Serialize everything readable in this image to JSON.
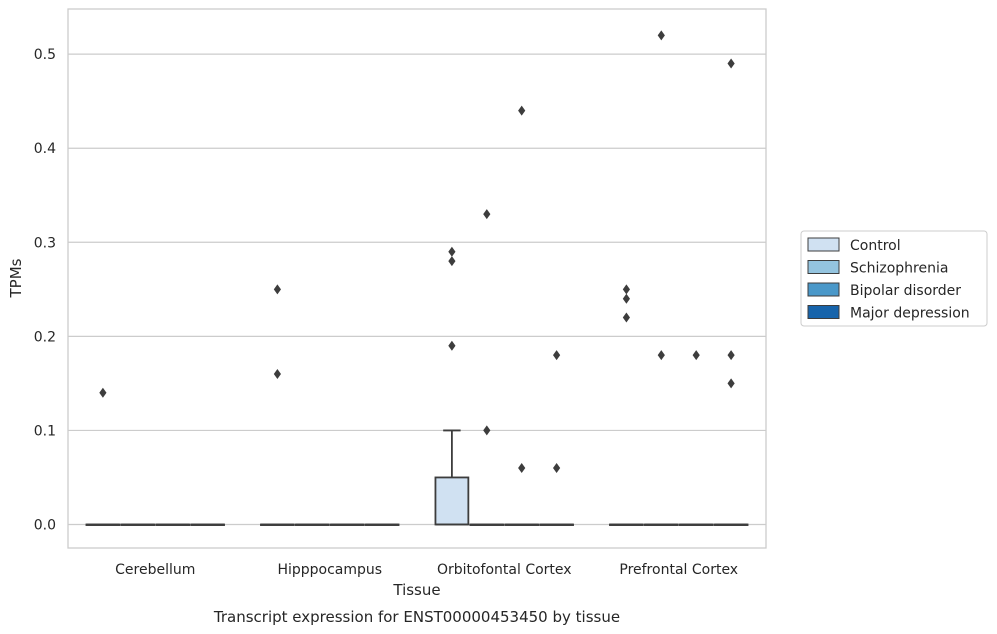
{
  "chart_data": {
    "type": "box",
    "title": "",
    "caption": "Transcript expression for ENST00000453450 by tissue",
    "xlabel": "Tissue",
    "ylabel": "TPMs",
    "ylim": [
      -0.025,
      0.548
    ],
    "yticks": [
      0.0,
      0.1,
      0.2,
      0.3,
      0.4,
      0.5
    ],
    "ytick_labels": [
      "0.0",
      "0.1",
      "0.2",
      "0.3",
      "0.4",
      "0.5"
    ],
    "grid": true,
    "legend_position": "right",
    "categories": [
      "Cerebellum",
      "Hipppocampus",
      "Orbitofontal Cortex",
      "Prefrontal Cortex"
    ],
    "series": [
      {
        "name": "Control",
        "color": "#d0e1f2",
        "boxes": [
          {
            "q1": 0.0,
            "median": 0.0,
            "q3": 0.0,
            "whisker_low": 0.0,
            "whisker_high": 0.0,
            "outliers": [
              0.14
            ]
          },
          {
            "q1": 0.0,
            "median": 0.0,
            "q3": 0.0,
            "whisker_low": 0.0,
            "whisker_high": 0.0,
            "outliers": [
              0.25,
              0.16
            ]
          },
          {
            "q1": 0.0,
            "median": 0.0,
            "q3": 0.05,
            "whisker_low": 0.0,
            "whisker_high": 0.1,
            "outliers": [
              0.29,
              0.28,
              0.19
            ]
          },
          {
            "q1": 0.0,
            "median": 0.0,
            "q3": 0.0,
            "whisker_low": 0.0,
            "whisker_high": 0.0,
            "outliers": [
              0.25,
              0.24,
              0.22
            ]
          }
        ]
      },
      {
        "name": "Schizophrenia",
        "color": "#94c4df",
        "boxes": [
          {
            "q1": 0.0,
            "median": 0.0,
            "q3": 0.0,
            "whisker_low": 0.0,
            "whisker_high": 0.0,
            "outliers": []
          },
          {
            "q1": 0.0,
            "median": 0.0,
            "q3": 0.0,
            "whisker_low": 0.0,
            "whisker_high": 0.0,
            "outliers": []
          },
          {
            "q1": 0.0,
            "median": 0.0,
            "q3": 0.0,
            "whisker_low": 0.0,
            "whisker_high": 0.0,
            "outliers": [
              0.33,
              0.1
            ]
          },
          {
            "q1": 0.0,
            "median": 0.0,
            "q3": 0.0,
            "whisker_low": 0.0,
            "whisker_high": 0.0,
            "outliers": [
              0.52,
              0.18
            ]
          }
        ]
      },
      {
        "name": "Bipolar disorder",
        "color": "#4a98c9",
        "boxes": [
          {
            "q1": 0.0,
            "median": 0.0,
            "q3": 0.0,
            "whisker_low": 0.0,
            "whisker_high": 0.0,
            "outliers": []
          },
          {
            "q1": 0.0,
            "median": 0.0,
            "q3": 0.0,
            "whisker_low": 0.0,
            "whisker_high": 0.0,
            "outliers": []
          },
          {
            "q1": 0.0,
            "median": 0.0,
            "q3": 0.0,
            "whisker_low": 0.0,
            "whisker_high": 0.0,
            "outliers": [
              0.44,
              0.06
            ]
          },
          {
            "q1": 0.0,
            "median": 0.0,
            "q3": 0.0,
            "whisker_low": 0.0,
            "whisker_high": 0.0,
            "outliers": [
              0.18
            ]
          }
        ]
      },
      {
        "name": "Major depression",
        "color": "#1764ab",
        "boxes": [
          {
            "q1": 0.0,
            "median": 0.0,
            "q3": 0.0,
            "whisker_low": 0.0,
            "whisker_high": 0.0,
            "outliers": []
          },
          {
            "q1": 0.0,
            "median": 0.0,
            "q3": 0.0,
            "whisker_low": 0.0,
            "whisker_high": 0.0,
            "outliers": []
          },
          {
            "q1": 0.0,
            "median": 0.0,
            "q3": 0.0,
            "whisker_low": 0.0,
            "whisker_high": 0.0,
            "outliers": [
              0.18,
              0.06
            ]
          },
          {
            "q1": 0.0,
            "median": 0.0,
            "q3": 0.0,
            "whisker_low": 0.0,
            "whisker_high": 0.0,
            "outliers": [
              0.49,
              0.18,
              0.15
            ]
          }
        ]
      }
    ]
  },
  "style": {
    "grid_color": "#cccccc",
    "frame_color": "#cccccc",
    "line_color": "#3d3d3d",
    "outlier_color": "#3d3d3d"
  }
}
